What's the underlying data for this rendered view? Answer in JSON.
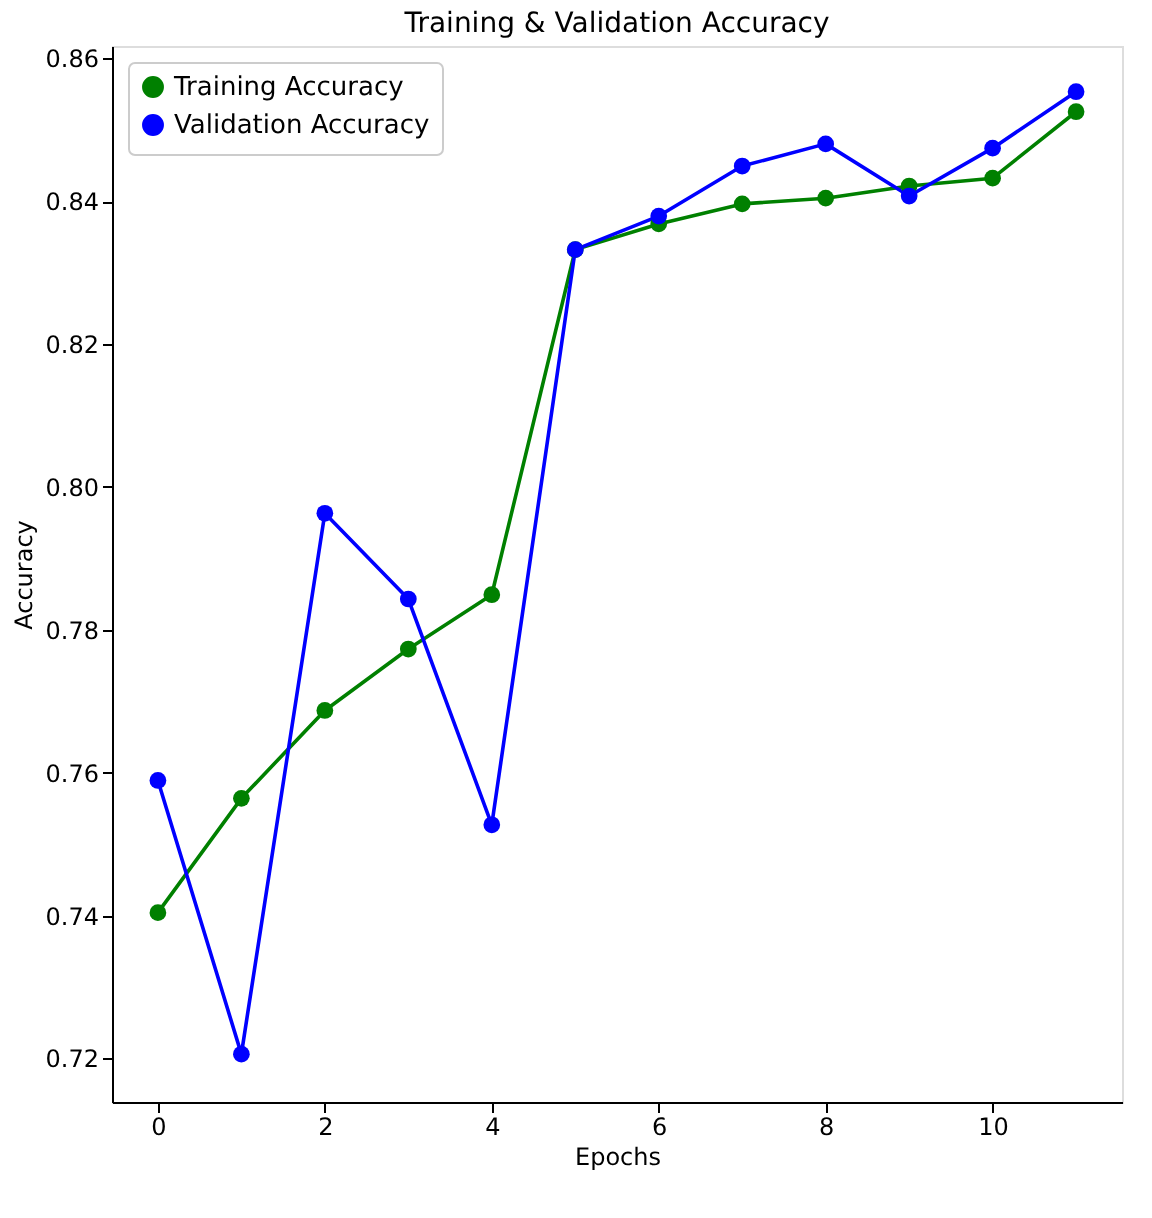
{
  "chart_data": {
    "type": "line",
    "title": "Training & Validation Accuracy",
    "xlabel": "Epochs",
    "ylabel": "Accuracy",
    "x": [
      0,
      1,
      2,
      3,
      4,
      5,
      6,
      7,
      8,
      9,
      10,
      11
    ],
    "series": [
      {
        "name": "Training Accuracy",
        "color": "#008000",
        "values": [
          0.7404,
          0.7564,
          0.7687,
          0.7773,
          0.7849,
          0.8332,
          0.8368,
          0.8396,
          0.8404,
          0.8421,
          0.8432,
          0.8525
        ]
      },
      {
        "name": "Validation Accuracy",
        "color": "#0000ff",
        "values": [
          0.7589,
          0.7206,
          0.7963,
          0.7843,
          0.7527,
          0.8332,
          0.8379,
          0.8449,
          0.848,
          0.8407,
          0.8474,
          0.8553
        ]
      }
    ],
    "xlim": [
      -0.55,
      11.55
    ],
    "xticks": [
      0,
      2,
      4,
      6,
      8,
      10
    ],
    "ylim": [
      0.7139,
      0.8617
    ],
    "yticks": [
      0.72,
      0.74,
      0.76,
      0.78,
      {
        "value": 0.8,
        "label": "0.80"
      },
      0.82,
      0.84,
      0.86
    ],
    "grid": false,
    "legend": "top left",
    "marker": "circle",
    "line_style": "solid"
  }
}
